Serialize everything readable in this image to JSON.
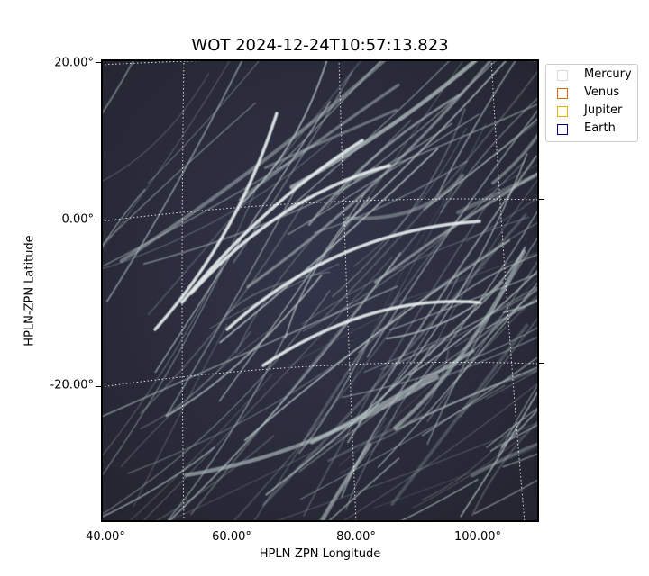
{
  "title": "WOT 2024-12-24T10:57:13.823",
  "axes": {
    "xlabel": "HPLN-ZPN Longitude",
    "ylabel": "HPLN-ZPN Latitude",
    "xticks": [
      "40.00°",
      "60.00°",
      "80.00°",
      "100.00°"
    ],
    "yticks": [
      "20.00°",
      "0.00°",
      "-20.00°"
    ]
  },
  "legend": {
    "items": [
      {
        "label": "Mercury",
        "color": "#d8d8d8"
      },
      {
        "label": "Venus",
        "color": "#d2691e"
      },
      {
        "label": "Jupiter",
        "color": "#e0b000"
      },
      {
        "label": "Earth",
        "color": "#000080"
      }
    ]
  },
  "image": {
    "colormap": "bone",
    "background_color": "#2a2b3d",
    "streak_color": "#b8c6c6"
  }
}
